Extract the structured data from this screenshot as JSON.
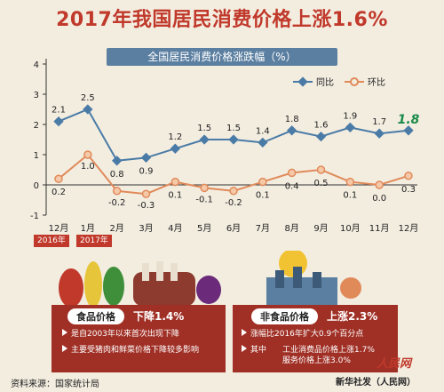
{
  "title": "2017年我国居民消费价格上涨1.6%",
  "subtitle": "全国居民消费价格涨跌幅（%）",
  "chart_data": {
    "type": "line",
    "categories": [
      "12月",
      "1月",
      "2月",
      "3月",
      "4月",
      "5月",
      "6月",
      "7月",
      "8月",
      "9月",
      "10月",
      "11月",
      "12月"
    ],
    "ylim": [
      -1,
      4
    ],
    "yticks": [
      -1,
      0,
      1,
      2,
      3,
      4
    ],
    "series": [
      {
        "name": "同比",
        "color": "#4a7ba6",
        "values": [
          2.1,
          2.5,
          0.8,
          0.9,
          1.2,
          1.5,
          1.5,
          1.4,
          1.8,
          1.6,
          1.9,
          1.7,
          1.8
        ]
      },
      {
        "name": "环比",
        "color": "#e08a5a",
        "values": [
          0.2,
          1.0,
          -0.2,
          -0.3,
          0.1,
          -0.1,
          -0.2,
          0.1,
          0.4,
          0.5,
          0.1,
          0.0,
          0.3
        ]
      }
    ],
    "legend": "top-right",
    "year_labels": [
      "2016年",
      "2017年"
    ]
  },
  "panels": {
    "food": {
      "pill": "食品价格",
      "change": "下降1.4%",
      "bullets": [
        "是自2003年以来首次出现下降",
        "主要受猪肉和鲜菜价格下降较多影响"
      ]
    },
    "nonfood": {
      "pill": "非食品价格",
      "change": "上涨2.3%",
      "bullets": [
        "涨幅比2016年扩大0.9个百分点"
      ],
      "sub_label": "其中",
      "sub_lines": [
        "工业消费品价格上涨1.7%",
        "服务价格上涨3.0%"
      ]
    }
  },
  "footer": {
    "source": "资料来源：国家统计局",
    "agency": "新华社发（人民网）",
    "logo_text": "人民网"
  },
  "colors": {
    "accent": "#c0392b",
    "panel": "#a03026",
    "highlight": "#1a8a4a"
  }
}
